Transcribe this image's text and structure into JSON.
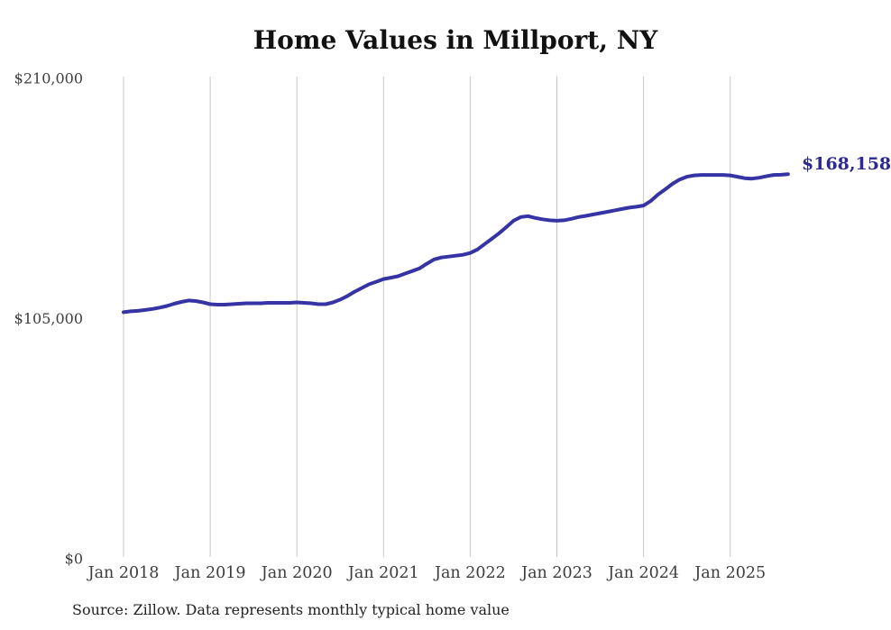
{
  "chart_data": {
    "type": "line",
    "title": "Home Values in Millport, NY",
    "source_note": "Source: Zillow. Data represents monthly typical home value",
    "end_label": "$168,158",
    "final_value": 168158,
    "x_start": "2018-01",
    "x_end": "2025-09",
    "x_interval": "monthly",
    "x_tick_labels": [
      "Jan 2018",
      "Jan 2019",
      "Jan 2020",
      "Jan 2021",
      "Jan 2022",
      "Jan 2023",
      "Jan 2024",
      "Jan 2025"
    ],
    "y_ticks": [
      {
        "label": "$0",
        "value": 0
      },
      {
        "label": "$105,000",
        "value": 105000
      },
      {
        "label": "$210,000",
        "value": 210000
      }
    ],
    "ylim": [
      0,
      210000
    ],
    "grid": "vertical-only",
    "legend": "none",
    "colors": {
      "line": "#3633a4",
      "end_label": "#2c2a92",
      "grid": "#c9c9c9",
      "axis_text": "#3d3d3d",
      "title": "#111111",
      "source_text": "#222222"
    },
    "values": [
      107800,
      108200,
      108400,
      108800,
      109200,
      109800,
      110500,
      111500,
      112300,
      112900,
      112700,
      112100,
      111300,
      111100,
      111100,
      111300,
      111500,
      111700,
      111700,
      111700,
      111900,
      111900,
      111900,
      111900,
      112100,
      111900,
      111700,
      111300,
      111300,
      112100,
      113300,
      114900,
      116800,
      118400,
      120000,
      121100,
      122300,
      122900,
      123500,
      124700,
      125800,
      127000,
      129000,
      130900,
      131700,
      132100,
      132500,
      132900,
      133700,
      135200,
      137600,
      139900,
      142300,
      145000,
      147800,
      149400,
      149800,
      149000,
      148400,
      148000,
      147800,
      148000,
      148600,
      149400,
      149900,
      150500,
      151100,
      151700,
      152300,
      152900,
      153500,
      153900,
      154400,
      156400,
      159200,
      161500,
      163900,
      165800,
      167000,
      167600,
      167800,
      167800,
      167800,
      167800,
      167600,
      167000,
      166400,
      166200,
      166600,
      167200,
      167800,
      167900,
      168158
    ]
  }
}
